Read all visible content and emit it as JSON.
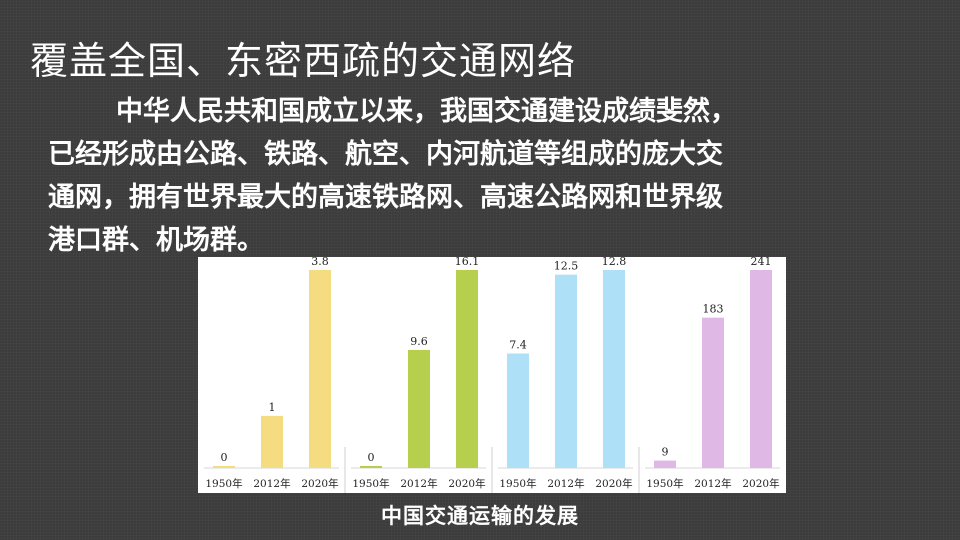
{
  "slide": {
    "title": "覆盖全国、东密西疏的交通网络",
    "paragraph_lines": [
      "中华人民共和国成立以来，我国交通建设成绩斐然，",
      "已经形成由公路、铁路、航空、内河航道等组成的庞大交",
      "通网，拥有世界最大的高速铁路网、高速公路网和世界级",
      "港口群、机场群。"
    ],
    "caption": "中国交通运输的发展"
  },
  "chart_data": [
    {
      "type": "bar",
      "categories": [
        "1950年",
        "2012年",
        "2020年"
      ],
      "values": [
        0,
        1,
        3.8
      ],
      "labels": [
        "0",
        "1",
        "3.8"
      ],
      "color": "#f5dc80"
    },
    {
      "type": "bar",
      "categories": [
        "1950年",
        "2012年",
        "2020年"
      ],
      "values": [
        0,
        9.6,
        16.1
      ],
      "labels": [
        "0",
        "9.6",
        "16.1"
      ],
      "color": "#b6cf4c"
    },
    {
      "type": "bar",
      "categories": [
        "1950年",
        "2012年",
        "2020年"
      ],
      "values": [
        7.4,
        12.5,
        12.8
      ],
      "labels": [
        "7.4",
        "12.5",
        "12.8"
      ],
      "color": "#aee0f8"
    },
    {
      "type": "bar",
      "categories": [
        "1950年",
        "2012年",
        "2020年"
      ],
      "values": [
        9,
        183,
        241
      ],
      "labels": [
        "9",
        "183",
        "241"
      ],
      "color": "#e0b8e6"
    }
  ]
}
